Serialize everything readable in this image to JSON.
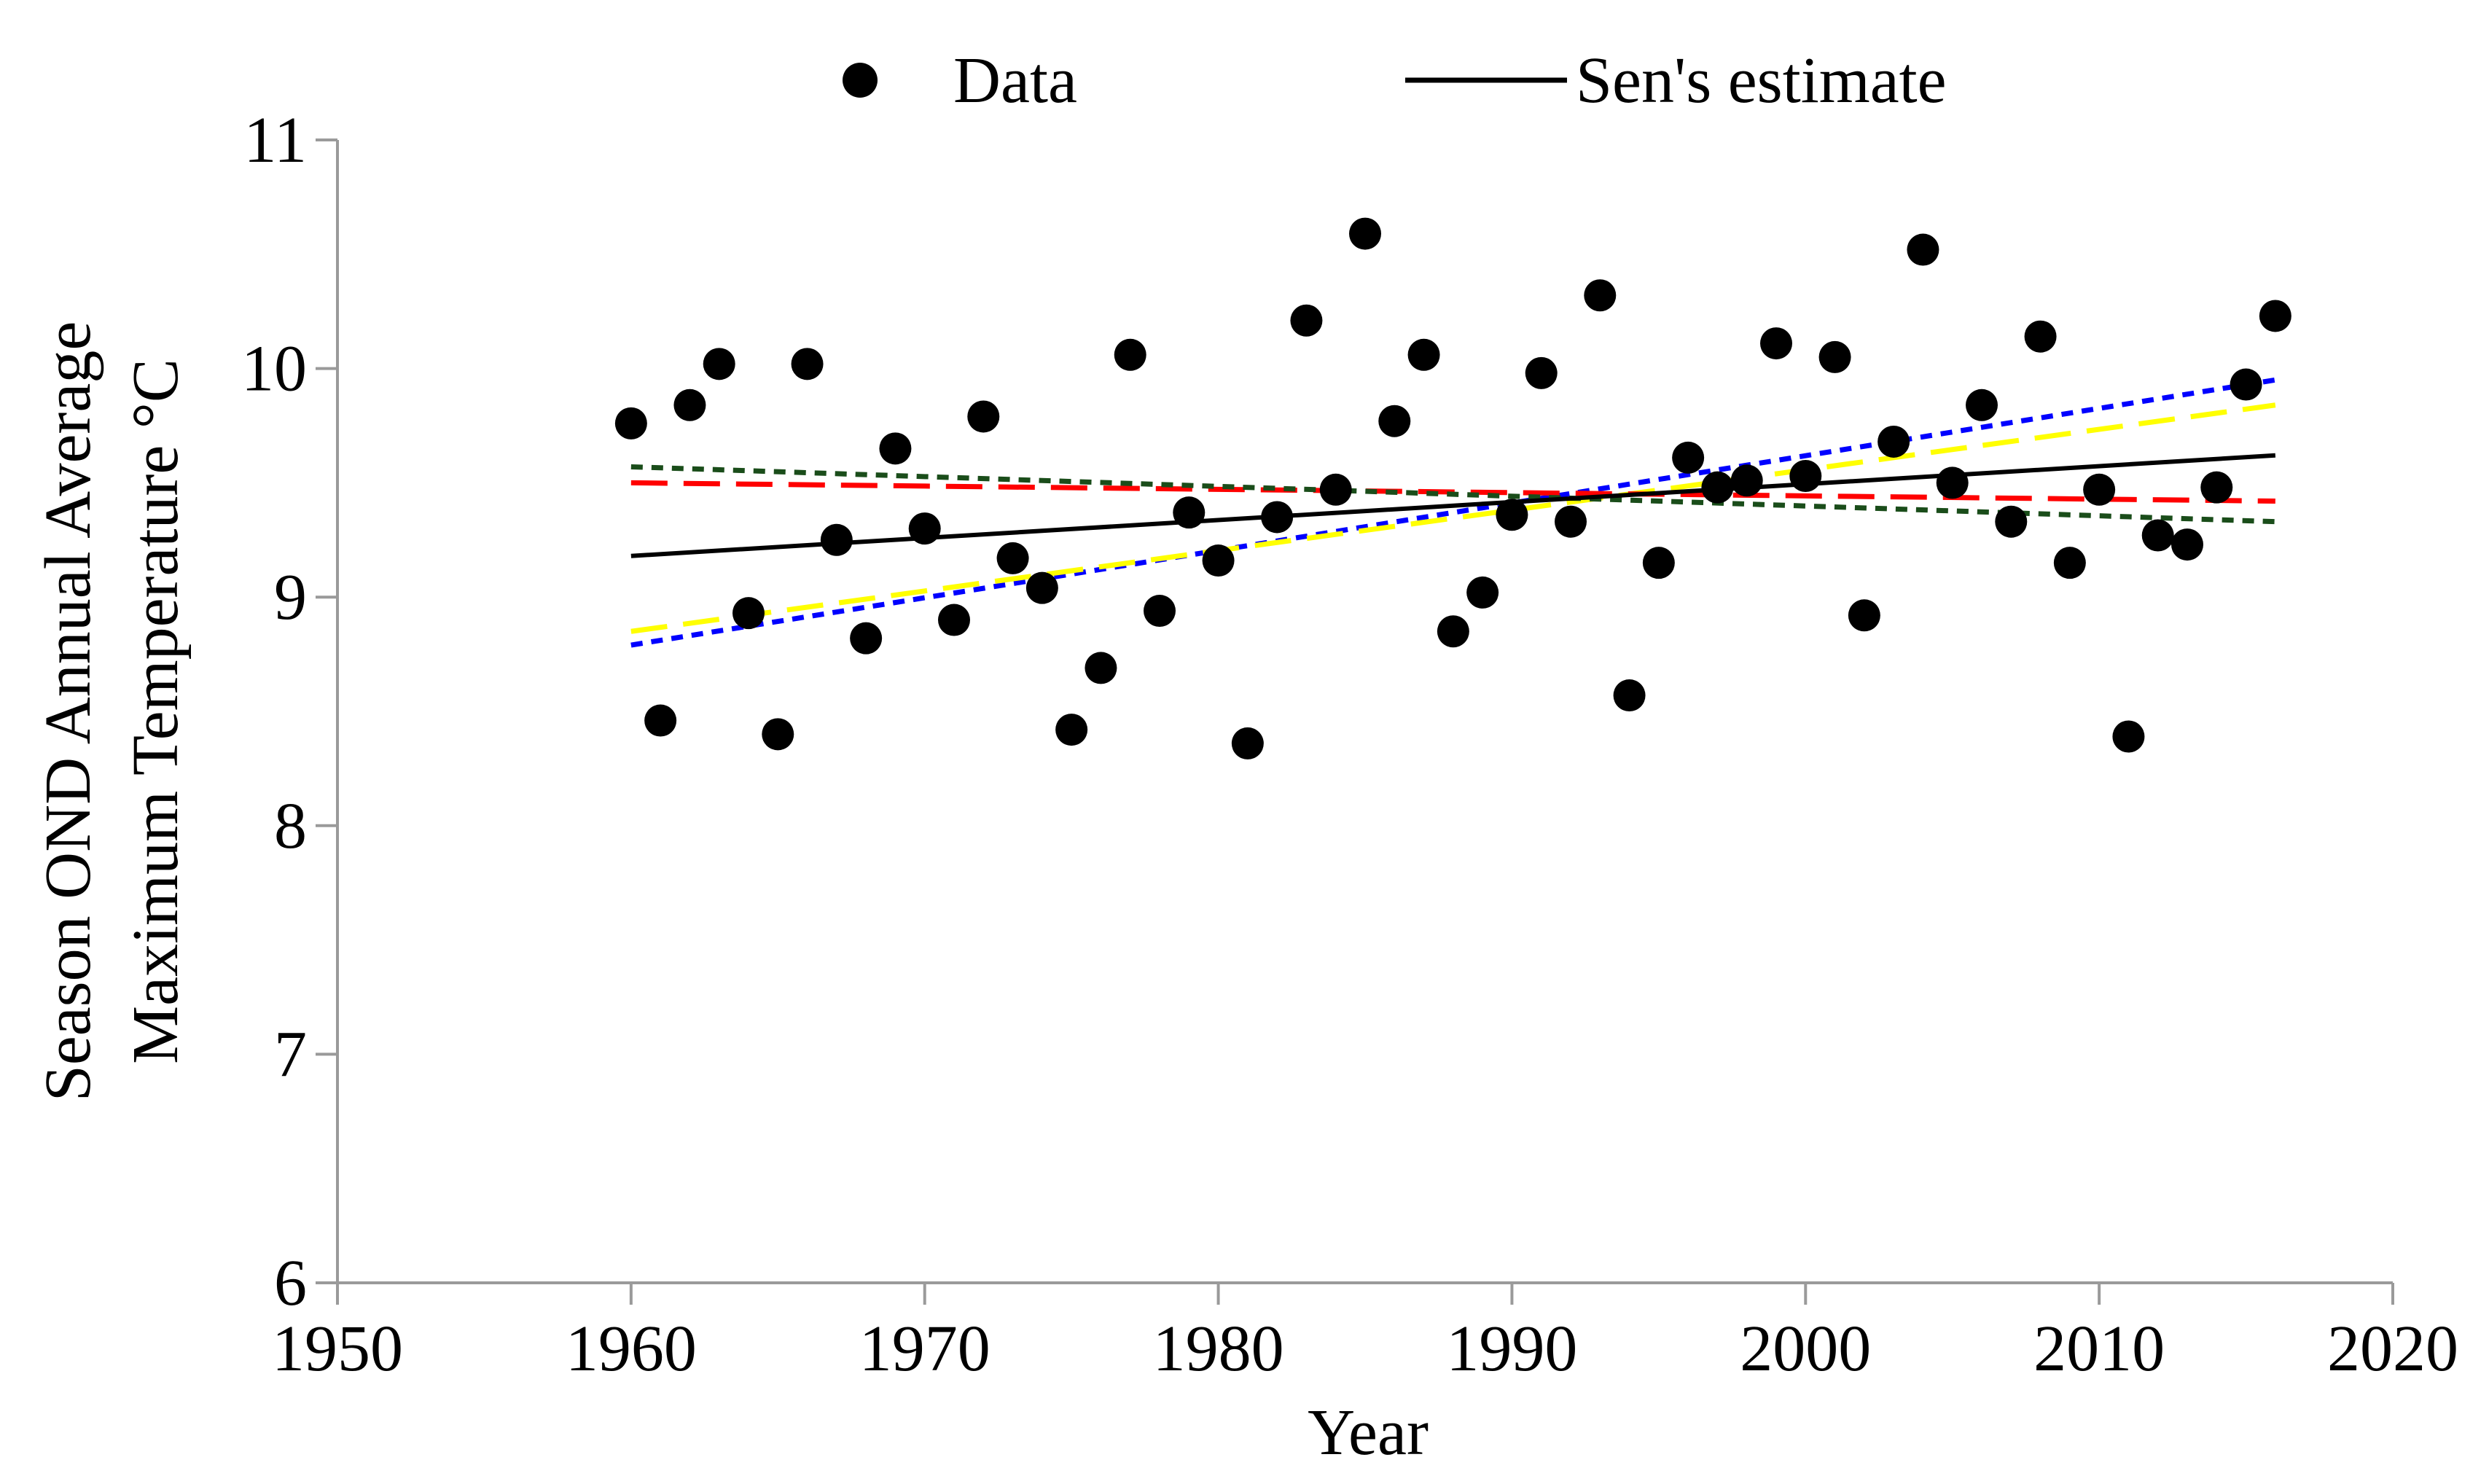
{
  "chart_data": {
    "type": "scatter",
    "title": "",
    "xlabel": "Year",
    "ylabel_line1": "Season OND Annual Average",
    "ylabel_line2": "Maximum Temperature °C",
    "xlim": [
      1950,
      2020
    ],
    "ylim": [
      6,
      11
    ],
    "x_ticks": [
      1950,
      1960,
      1970,
      1980,
      1990,
      2000,
      2010,
      2020
    ],
    "y_ticks": [
      6,
      7,
      8,
      9,
      10,
      11
    ],
    "x_tick_labels": [
      "1950",
      "1960",
      "1970",
      "1980",
      "1990",
      "2000",
      "2010",
      "2020"
    ],
    "y_tick_labels": [
      "6",
      "7",
      "8",
      "9",
      "10",
      "11"
    ],
    "grid": false,
    "legend": {
      "placement": "top-center",
      "entries": [
        {
          "label": "Data",
          "kind": "marker",
          "color": "#000000"
        },
        {
          "label": "Sen's estimate",
          "kind": "line",
          "color": "#000000"
        }
      ]
    },
    "series": [
      {
        "name": "Data",
        "kind": "scatter",
        "color": "#000000",
        "x": [
          1960,
          1961,
          1962,
          1963,
          1964,
          1965,
          1966,
          1967,
          1968,
          1969,
          1970,
          1971,
          1972,
          1973,
          1974,
          1975,
          1976,
          1977,
          1978,
          1979,
          1980,
          1981,
          1982,
          1983,
          1984,
          1985,
          1986,
          1987,
          1988,
          1989,
          1990,
          1991,
          1992,
          1993,
          1994,
          1995,
          1996,
          1997,
          1998,
          1999,
          2000,
          2001,
          2002,
          2003,
          2004,
          2005,
          2006,
          2007,
          2008,
          2009,
          2010,
          2011,
          2012,
          2013,
          2014,
          2015,
          2016
        ],
        "y": [
          9.76,
          8.46,
          9.84,
          10.02,
          8.93,
          8.4,
          10.02,
          9.25,
          8.82,
          9.65,
          9.3,
          8.9,
          9.79,
          9.17,
          9.04,
          8.42,
          8.69,
          10.06,
          8.94,
          9.37,
          9.16,
          8.36,
          9.35,
          10.21,
          9.47,
          10.59,
          9.77,
          10.06,
          8.85,
          9.02,
          9.36,
          9.98,
          9.33,
          10.32,
          8.57,
          9.15,
          9.61,
          9.48,
          9.51,
          10.11,
          9.53,
          10.05,
          8.92,
          9.68,
          10.52,
          9.5,
          9.84,
          9.33,
          10.14,
          9.15,
          9.47,
          8.39,
          9.27,
          9.23,
          9.48,
          9.93,
          10.23
        ]
      },
      {
        "name": "Sen's estimate",
        "kind": "line",
        "color": "#000000",
        "dash": "solid",
        "x": [
          1960,
          2016
        ],
        "y": [
          9.18,
          9.62
        ]
      },
      {
        "name": "Upper confidence bound (blue)",
        "kind": "line",
        "color": "#0000ff",
        "dash": "dot",
        "x": [
          1960,
          2016
        ],
        "y": [
          8.79,
          9.95
        ]
      },
      {
        "name": "Lower confidence bound (yellow)",
        "kind": "line",
        "color": "#ffff00",
        "dash": "dash",
        "x": [
          1960,
          2016
        ],
        "y": [
          8.85,
          9.84
        ]
      },
      {
        "name": "Red dashed trend",
        "kind": "line",
        "color": "#ff0000",
        "dash": "dash",
        "x": [
          1960,
          2016
        ],
        "y": [
          9.5,
          9.42
        ]
      },
      {
        "name": "Dark green dotted trend",
        "kind": "line",
        "color": "#1a4d1a",
        "dash": "dot",
        "x": [
          1960,
          2016
        ],
        "y": [
          9.57,
          9.33
        ]
      }
    ]
  }
}
